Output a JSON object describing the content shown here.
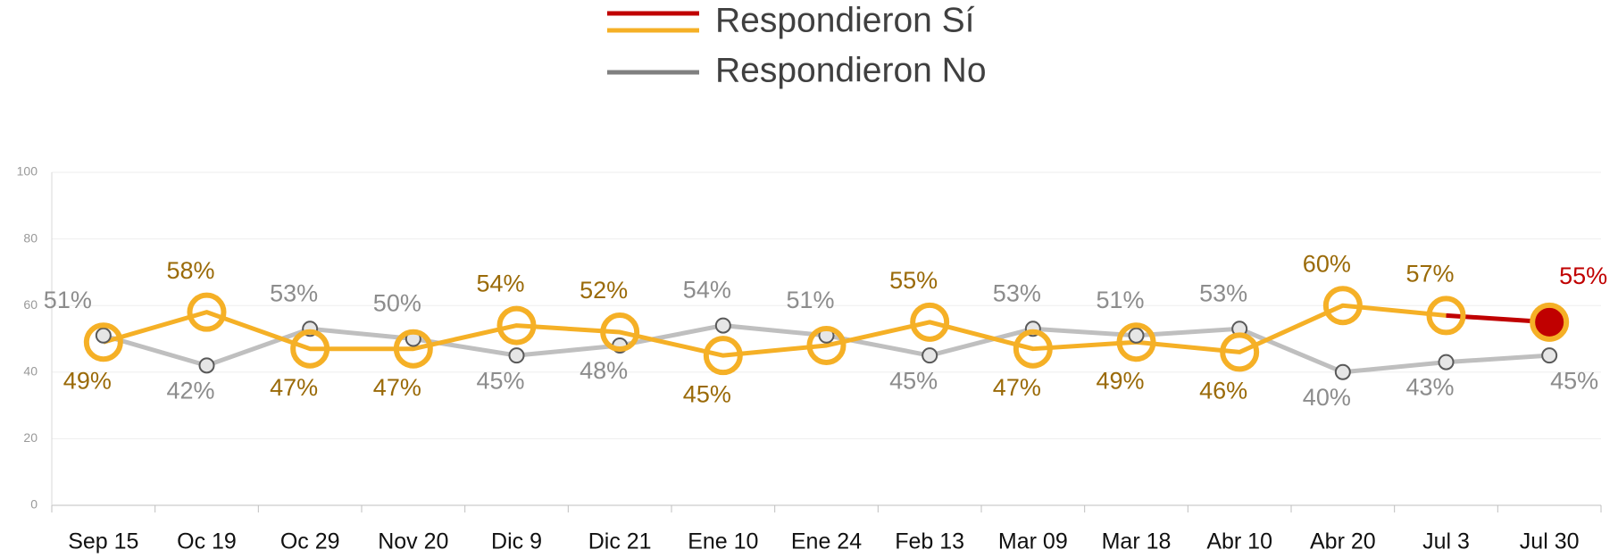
{
  "chart_data": {
    "type": "line",
    "categories": [
      "Sep 15",
      "Oc 19",
      "Oc 29",
      "Nov 20",
      "Dic 9",
      "Dic 21",
      "Ene 10",
      "Ene 24",
      "Feb 13",
      "Mar 09",
      "Mar 18",
      "Abr 10",
      "Abr 20",
      "Jul 3",
      "Jul 30"
    ],
    "series": [
      {
        "name": "Respondieron Sí",
        "color": "#f5b026",
        "highlight_color": "#c00000",
        "values": [
          49,
          58,
          47,
          47,
          54,
          52,
          45,
          48,
          55,
          47,
          49,
          46,
          60,
          57,
          55
        ],
        "value_labels": [
          "49%",
          "58%",
          "47%",
          "47%",
          "54%",
          "52%",
          "45%",
          null,
          "55%",
          "47%",
          "49%",
          "46%",
          "60%",
          "57%",
          "55%"
        ]
      },
      {
        "name": "Respondieron No",
        "color": "#bfbfbf",
        "values": [
          51,
          42,
          53,
          50,
          45,
          48,
          54,
          51,
          45,
          53,
          51,
          53,
          40,
          43,
          45
        ],
        "value_labels": [
          "51%",
          "42%",
          "53%",
          "50%",
          "45%",
          "48%",
          "54%",
          "51%",
          "45%",
          "53%",
          "51%",
          "53%",
          "40%",
          "43%",
          "45%"
        ]
      }
    ],
    "ylim": [
      0,
      100
    ],
    "yticks": [
      0,
      20,
      40,
      60,
      80,
      100
    ],
    "grid": true,
    "legend": "top"
  }
}
